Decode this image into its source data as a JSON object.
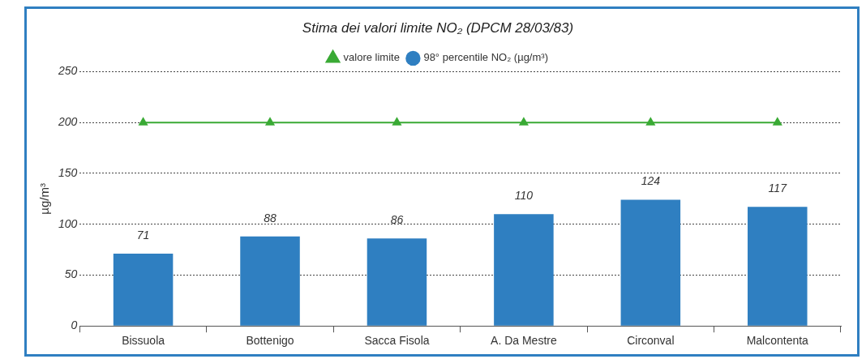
{
  "chart_data": {
    "type": "bar",
    "title": "Stima dei valori limite NO₂ (DPCM 28/03/83)",
    "ylabel": "µg/m³",
    "categories": [
      "Bissuola",
      "Bottenigo",
      "Sacca Fisola",
      "A. Da Mestre",
      "Circonval",
      "Malcontenta"
    ],
    "series": [
      {
        "name": "98° percentile NO₂ (µg/m³)",
        "color": "#2f7fc1",
        "values": [
          71,
          88,
          86,
          110,
          124,
          117
        ],
        "value_labels": [
          "71",
          "88",
          "86",
          "110",
          "124",
          "117"
        ]
      },
      {
        "name": "valore limite",
        "type": "line",
        "color": "#3aaa35",
        "values": [
          200,
          200,
          200,
          200,
          200,
          200
        ],
        "marker": "triangle",
        "line_style": "solid"
      }
    ],
    "ylim": [
      0,
      250
    ],
    "yticks": [
      0,
      50,
      100,
      150,
      200,
      250
    ],
    "grid": "y",
    "legend": "top"
  }
}
